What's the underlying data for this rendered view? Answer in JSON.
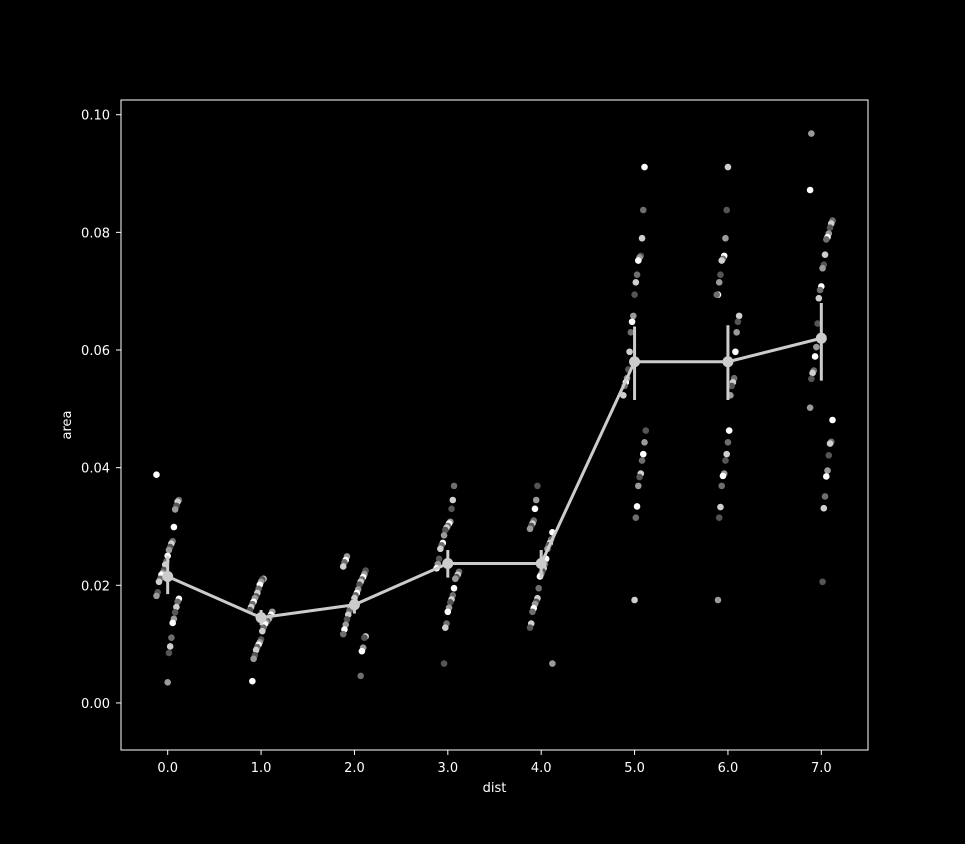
{
  "chart_data": {
    "type": "scatter",
    "title": "",
    "xlabel": "dist",
    "ylabel": "area",
    "categories": [
      "0.0",
      "1.0",
      "2.0",
      "3.0",
      "4.0",
      "5.0",
      "6.0",
      "7.0"
    ],
    "xlim": [
      -0.5,
      7.5
    ],
    "ylim": [
      -0.008,
      0.1025
    ],
    "yticks": [
      0.0,
      0.02,
      0.04,
      0.06,
      0.08,
      0.1
    ],
    "ytick_labels": [
      "0.00",
      "0.02",
      "0.04",
      "0.06",
      "0.08",
      "0.10"
    ],
    "grid": false,
    "legend": "none",
    "colors": {
      "background": "#000000",
      "axes": "#ffffff",
      "line": "#cccccc",
      "point_shades": [
        "#ffffff",
        "#cfcfcf",
        "#9a9a9a",
        "#6e6e6e",
        "#555555"
      ]
    },
    "point_series": [
      {
        "x": 0,
        "values": [
          0.0388,
          0.0345,
          0.0342,
          0.0335,
          0.0329,
          0.0299,
          0.0275,
          0.0271,
          0.0265,
          0.026,
          0.025,
          0.0241,
          0.0235,
          0.0226,
          0.0221,
          0.0218,
          0.0211,
          0.0206,
          0.0188,
          0.0182,
          0.0177,
          0.0172,
          0.0163,
          0.0154,
          0.0143,
          0.0136,
          0.0111,
          0.0096,
          0.0085,
          0.0035
        ]
      },
      {
        "x": 1,
        "values": [
          0.0211,
          0.021,
          0.0206,
          0.0201,
          0.0194,
          0.0187,
          0.0181,
          0.0178,
          0.0172,
          0.0168,
          0.0163,
          0.0158,
          0.0155,
          0.015,
          0.0146,
          0.0142,
          0.0139,
          0.0137,
          0.0134,
          0.0128,
          0.0122,
          0.0108,
          0.0103,
          0.0099,
          0.0095,
          0.009,
          0.0081,
          0.0075,
          0.0037
        ]
      },
      {
        "x": 2,
        "values": [
          0.0249,
          0.0243,
          0.0239,
          0.0232,
          0.0225,
          0.0219,
          0.0214,
          0.021,
          0.0206,
          0.0201,
          0.0193,
          0.0187,
          0.0183,
          0.0178,
          0.0171,
          0.0166,
          0.0162,
          0.0157,
          0.015,
          0.0142,
          0.0133,
          0.0125,
          0.0117,
          0.0113,
          0.0111,
          0.0094,
          0.0088,
          0.0046
        ]
      },
      {
        "x": 3,
        "values": [
          0.0369,
          0.0345,
          0.033,
          0.0308,
          0.0305,
          0.0301,
          0.0298,
          0.0294,
          0.0285,
          0.0272,
          0.0268,
          0.0262,
          0.0245,
          0.0236,
          0.0229,
          0.0223,
          0.0218,
          0.0214,
          0.0211,
          0.0195,
          0.0183,
          0.0176,
          0.0171,
          0.0162,
          0.0155,
          0.0135,
          0.0128,
          0.0067
        ]
      },
      {
        "x": 4,
        "values": [
          0.0369,
          0.0345,
          0.033,
          0.031,
          0.0305,
          0.0301,
          0.0296,
          0.029,
          0.0278,
          0.0272,
          0.0268,
          0.0262,
          0.0245,
          0.0236,
          0.0229,
          0.0224,
          0.0219,
          0.0215,
          0.0195,
          0.0178,
          0.0172,
          0.0168,
          0.0161,
          0.0155,
          0.0135,
          0.0128,
          0.0067
        ]
      },
      {
        "x": 5,
        "values": [
          0.0911,
          0.0838,
          0.079,
          0.076,
          0.0757,
          0.0752,
          0.0728,
          0.0715,
          0.0694,
          0.0658,
          0.0648,
          0.063,
          0.0597,
          0.0567,
          0.0552,
          0.0545,
          0.0539,
          0.0523,
          0.0463,
          0.0443,
          0.0423,
          0.0412,
          0.039,
          0.0384,
          0.0369,
          0.0334,
          0.0315,
          0.0175
        ]
      },
      {
        "x": 6,
        "values": [
          0.0911,
          0.0838,
          0.079,
          0.076,
          0.0755,
          0.0752,
          0.0728,
          0.0715,
          0.0694,
          0.0694,
          0.0658,
          0.0648,
          0.063,
          0.0597,
          0.0552,
          0.0545,
          0.0539,
          0.0523,
          0.0463,
          0.0443,
          0.0423,
          0.0412,
          0.039,
          0.0386,
          0.0369,
          0.0333,
          0.0315,
          0.0175
        ]
      },
      {
        "x": 7,
        "values": [
          0.0968,
          0.0872,
          0.082,
          0.0815,
          0.0808,
          0.0798,
          0.0792,
          0.0788,
          0.0762,
          0.0745,
          0.0739,
          0.0708,
          0.0702,
          0.0688,
          0.0645,
          0.0605,
          0.0589,
          0.0565,
          0.0561,
          0.0551,
          0.0502,
          0.0481,
          0.0444,
          0.0441,
          0.0421,
          0.0395,
          0.0385,
          0.0351,
          0.0331,
          0.0206
        ]
      }
    ],
    "point_plot": {
      "x": [
        0,
        1,
        2,
        3,
        4,
        5,
        6,
        7
      ],
      "means": [
        0.0215,
        0.0145,
        0.0167,
        0.0237,
        0.0237,
        0.058,
        0.058,
        0.062
      ],
      "ci_low": [
        0.0185,
        0.0132,
        0.0152,
        0.0213,
        0.0212,
        0.0515,
        0.0515,
        0.0548
      ],
      "ci_high": [
        0.025,
        0.0158,
        0.0183,
        0.026,
        0.026,
        0.064,
        0.0642,
        0.068
      ]
    }
  }
}
